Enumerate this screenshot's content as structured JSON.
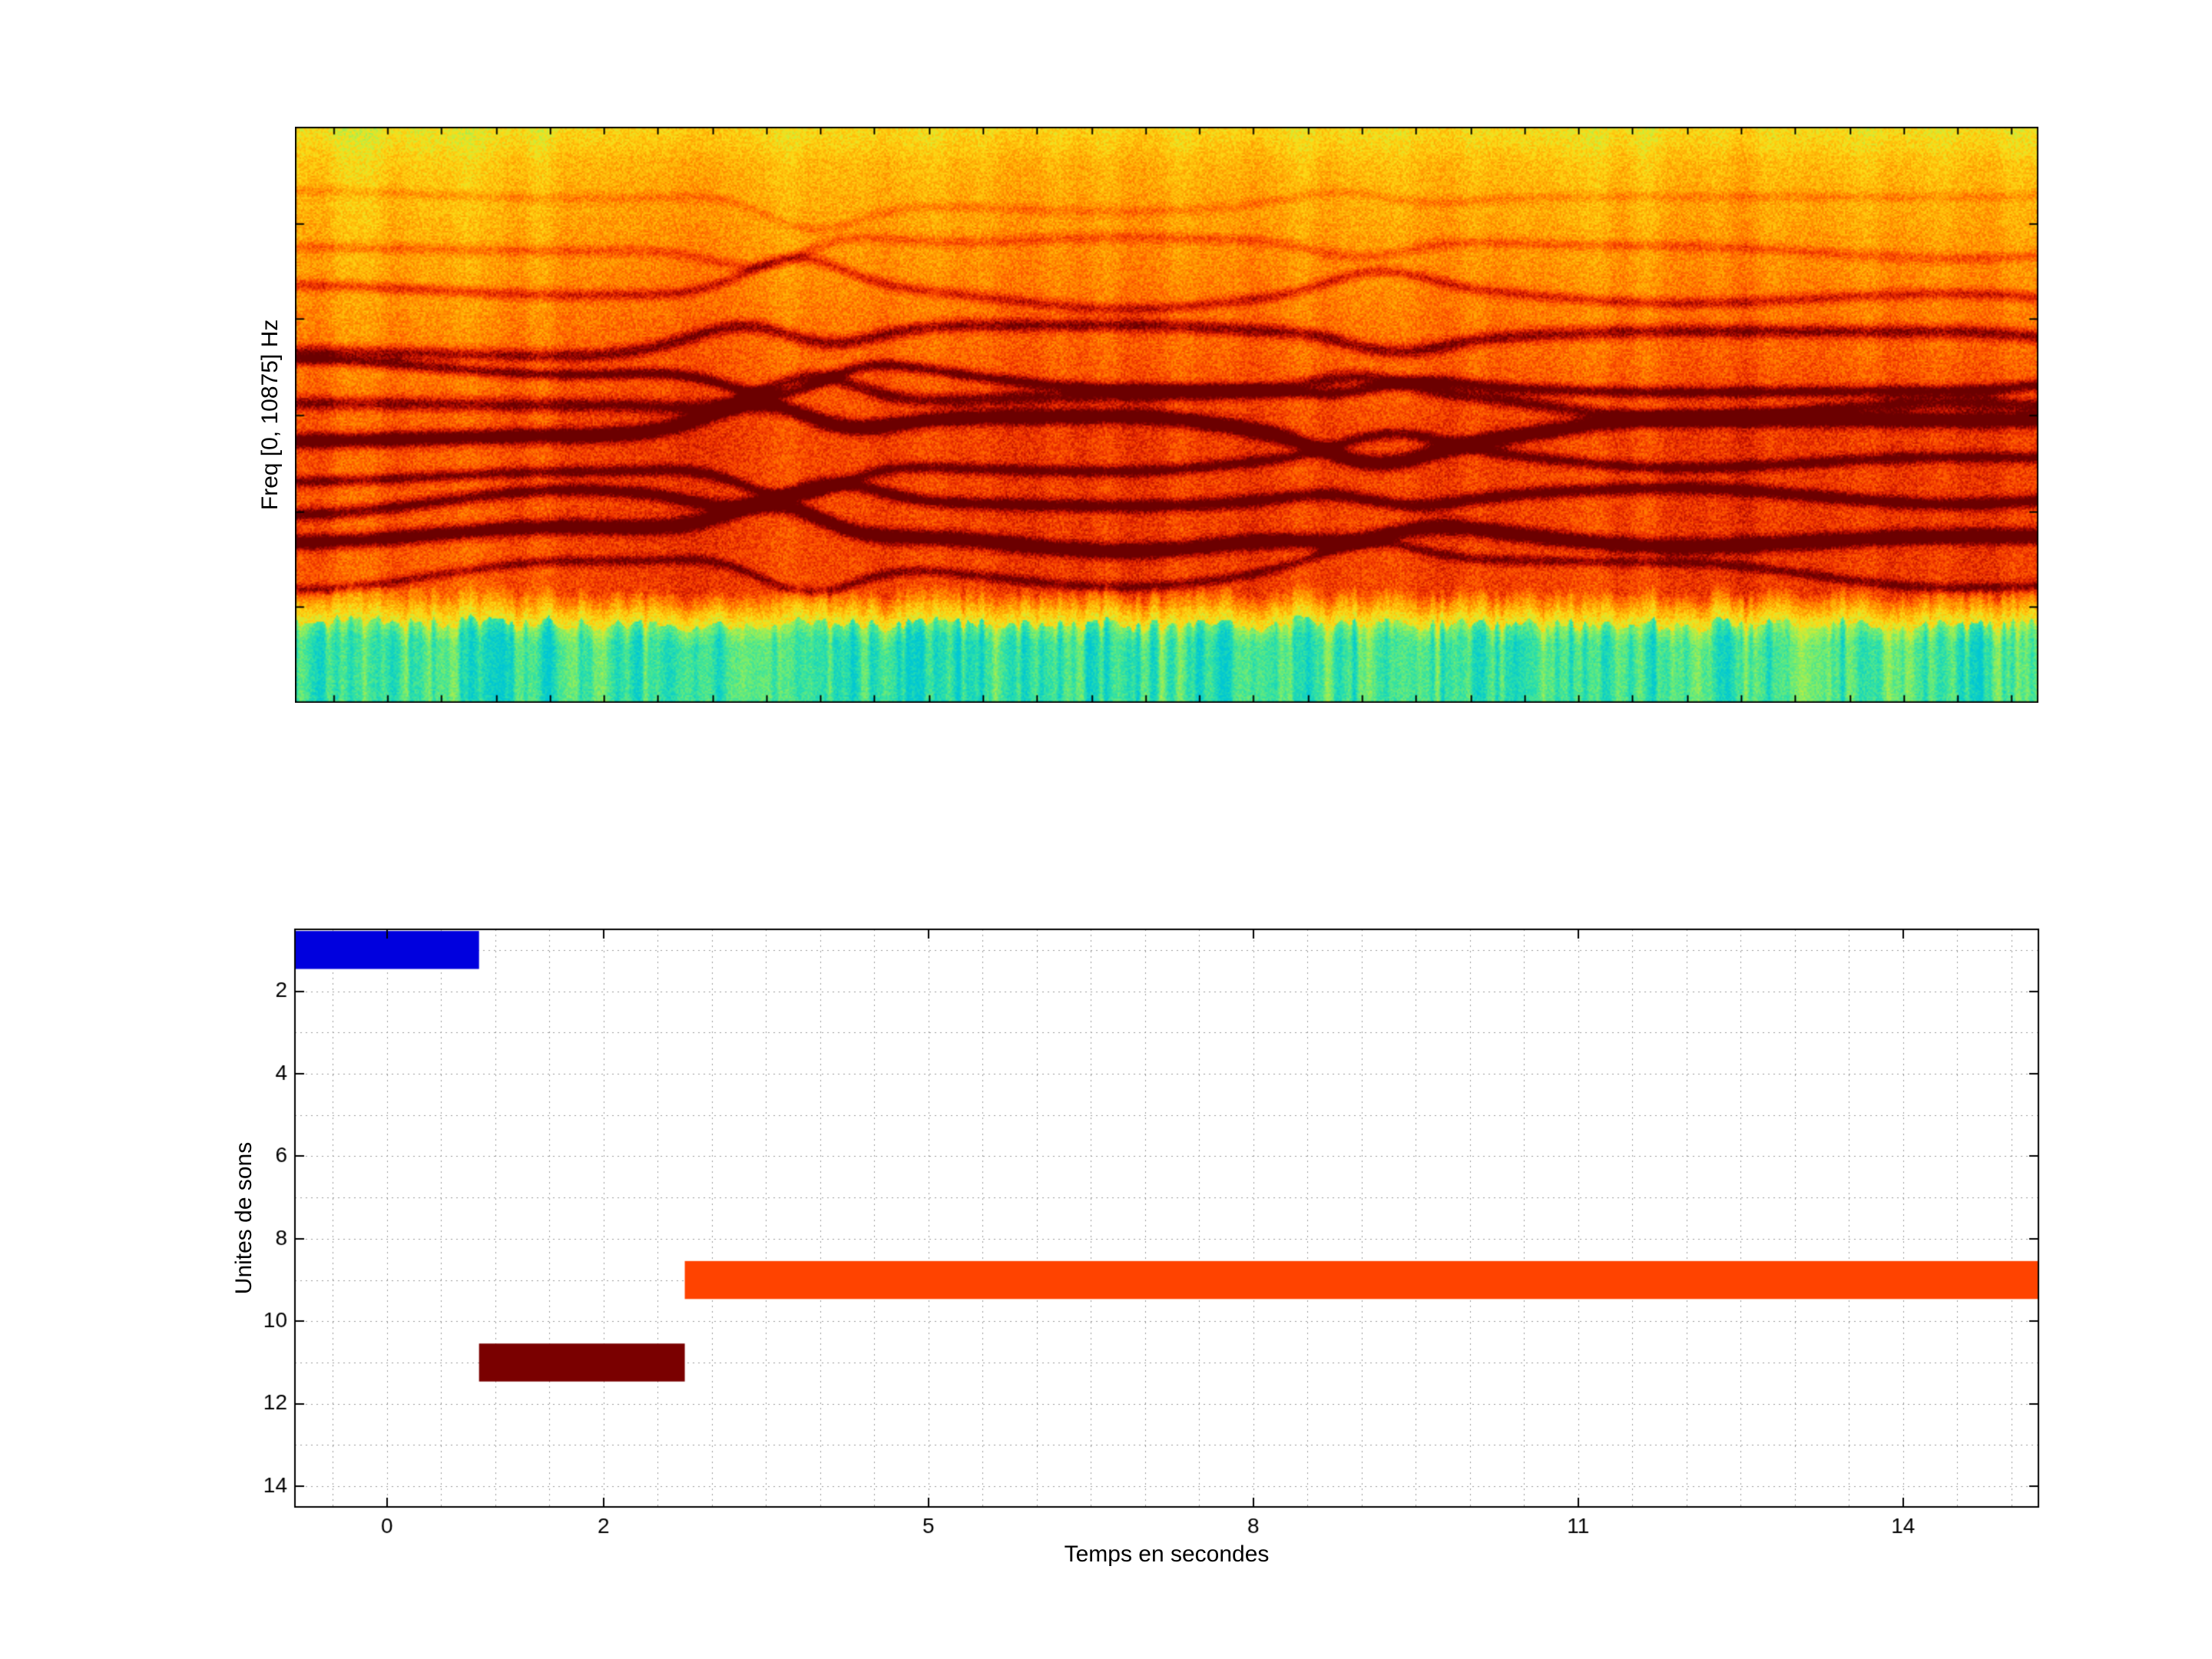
{
  "figure": {
    "background": "#ffffff",
    "text_color": "#000000"
  },
  "chart_data": [
    {
      "type": "heatmap",
      "name": "spectrogram",
      "title": "",
      "xlabel": "",
      "ylabel": "Freq [0, 10875] Hz",
      "freq_axis_hz": [
        0,
        10875
      ],
      "colormap": "jet",
      "palette": [
        {
          "v": 0.0,
          "rgb": [
            0,
            198,
            212
          ]
        },
        {
          "v": 0.1,
          "rgb": [
            45,
            224,
            168
          ]
        },
        {
          "v": 0.2,
          "rgb": [
            122,
            236,
            108
          ]
        },
        {
          "v": 0.3,
          "rgb": [
            200,
            236,
            58
          ]
        },
        {
          "v": 0.4,
          "rgb": [
            252,
            220,
            24
          ]
        },
        {
          "v": 0.5,
          "rgb": [
            255,
            184,
            8
          ]
        },
        {
          "v": 0.6,
          "rgb": [
            255,
            140,
            0
          ]
        },
        {
          "v": 0.7,
          "rgb": [
            255,
            90,
            0
          ]
        },
        {
          "v": 0.8,
          "rgb": [
            234,
            44,
            0
          ]
        },
        {
          "v": 0.9,
          "rgb": [
            178,
            10,
            0
          ]
        },
        {
          "v": 1.0,
          "rgb": [
            108,
            0,
            0
          ]
        }
      ]
    },
    {
      "type": "bar",
      "name": "sound-units-timeline",
      "orientation": "horizontal",
      "title": "",
      "xlabel": "Temps en secondes",
      "ylabel": "Unites de sons",
      "xlim": [
        -0.85,
        15.25
      ],
      "ylim": [
        0.5,
        14.5
      ],
      "xticks": [
        0,
        2,
        5,
        8,
        11,
        14
      ],
      "yticks": [
        2,
        4,
        6,
        8,
        10,
        12,
        14
      ],
      "grid_style": "dotted",
      "minor_x_step": 0.5,
      "minor_y_step": 1,
      "bars": [
        {
          "unit": 1,
          "start": -0.85,
          "end": 0.85,
          "color": "#0000DE"
        },
        {
          "unit": 11,
          "start": 0.85,
          "end": 2.75,
          "color": "#7A0000"
        },
        {
          "unit": 9,
          "start": 2.75,
          "end": 15.25,
          "color": "#FF4300"
        }
      ]
    }
  ]
}
